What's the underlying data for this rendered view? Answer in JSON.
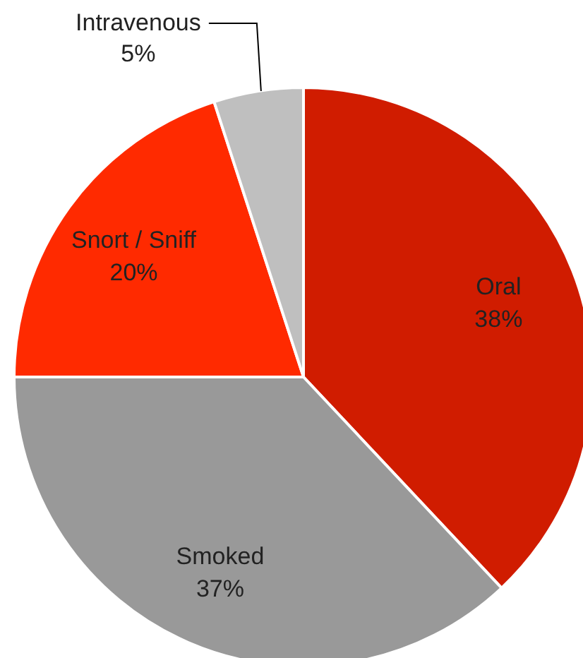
{
  "chart_data": {
    "type": "pie",
    "categories": [
      "Oral",
      "Smoked",
      "Snort / Sniff",
      "Intravenous"
    ],
    "values": [
      38,
      37,
      20,
      5
    ],
    "colors": [
      "#d01c00",
      "#999999",
      "#ff2a00",
      "#bfbfbf"
    ],
    "value_labels": [
      "38%",
      "37%",
      "20%",
      "5%"
    ]
  }
}
